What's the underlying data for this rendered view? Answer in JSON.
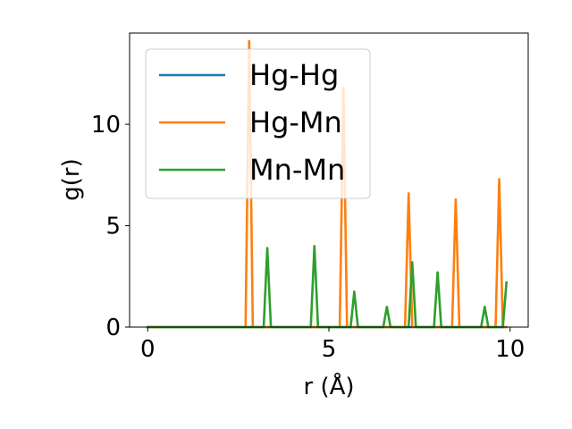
{
  "chart_data": {
    "type": "line",
    "title": "",
    "xlabel": "r (Å)",
    "ylabel": "g(r)",
    "xlim": [
      -0.5,
      10.5
    ],
    "ylim": [
      0,
      14.5
    ],
    "xticks": [
      0,
      5,
      10
    ],
    "yticks": [
      0,
      5,
      10
    ],
    "xtick_labels": [
      "0",
      "5",
      "10"
    ],
    "ytick_labels": [
      "0",
      "5",
      "10"
    ],
    "grid": false,
    "legend_position": "top-left",
    "series": [
      {
        "name": "Hg-Hg",
        "color": "#1f77b4",
        "x": [
          0,
          9.9
        ],
        "y": [
          0,
          0
        ]
      },
      {
        "name": "Hg-Mn",
        "color": "#ff7f0e",
        "x": [
          0,
          2.7,
          2.8,
          2.9,
          5.3,
          5.4,
          5.5,
          7.1,
          7.2,
          7.3,
          8.4,
          8.5,
          8.6,
          9.6,
          9.7,
          9.8,
          9.9
        ],
        "y": [
          0,
          0,
          14.1,
          0,
          0,
          11.8,
          0,
          0,
          6.6,
          0,
          0,
          6.3,
          0,
          0,
          7.3,
          0,
          0
        ]
      },
      {
        "name": "Mn-Mn",
        "color": "#2ca02c",
        "x": [
          0,
          3.2,
          3.3,
          3.4,
          4.5,
          4.6,
          4.7,
          5.6,
          5.7,
          5.8,
          6.5,
          6.6,
          6.7,
          7.2,
          7.3,
          7.4,
          7.9,
          8.0,
          8.1,
          9.2,
          9.3,
          9.4,
          9.8,
          9.9
        ],
        "y": [
          0,
          0,
          3.9,
          0,
          0,
          4.0,
          0,
          0,
          1.75,
          0,
          0,
          1.0,
          0,
          0,
          3.2,
          0,
          0,
          2.7,
          0,
          0,
          1.0,
          0,
          0,
          2.2
        ]
      }
    ]
  }
}
